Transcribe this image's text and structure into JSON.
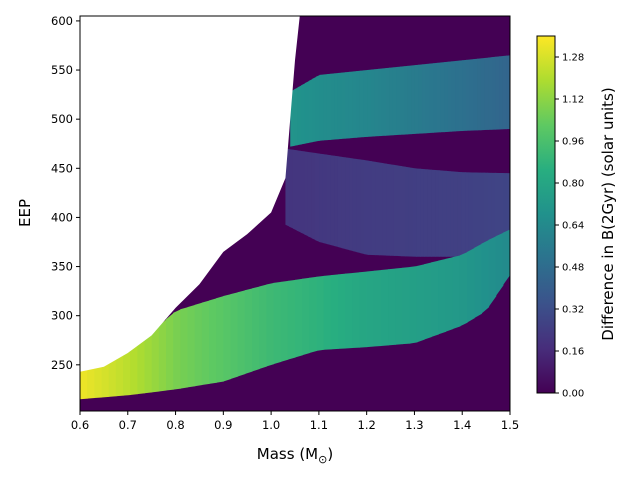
{
  "chart_data": {
    "type": "heatmap",
    "xlabel": "Mass (M",
    "xlabel_sub": "⊙",
    "xlabel_close": ")",
    "ylabel": "EEP",
    "colorbar_label": "Difference in B(2Gyr) (solar units)",
    "xlim": [
      0.6,
      1.5
    ],
    "ylim": [
      203,
      605
    ],
    "colorbar_range": [
      0.0,
      1.36
    ],
    "colormap": "viridis",
    "x_ticks": [
      "0.6",
      "0.7",
      "0.8",
      "0.9",
      "1.0",
      "1.1",
      "1.2",
      "1.3",
      "1.4",
      "1.5"
    ],
    "y_ticks": [
      "250",
      "300",
      "350",
      "400",
      "450",
      "500",
      "550",
      "600"
    ],
    "colorbar_ticks": [
      "0.00",
      "0.16",
      "0.32",
      "0.48",
      "0.64",
      "0.80",
      "0.96",
      "1.12",
      "1.28"
    ],
    "white_region_boundary": [
      [
        0.6,
        243
      ],
      [
        0.65,
        248
      ],
      [
        0.7,
        262
      ],
      [
        0.75,
        280
      ],
      [
        0.8,
        308
      ],
      [
        0.85,
        332
      ],
      [
        0.9,
        365
      ],
      [
        0.95,
        383
      ],
      [
        1.0,
        405
      ],
      [
        1.03,
        440
      ],
      [
        1.04,
        500
      ],
      [
        1.05,
        560
      ],
      [
        1.06,
        605
      ]
    ],
    "bands": [
      {
        "name": "main-sequence-band",
        "upper_edge": [
          [
            0.6,
            243
          ],
          [
            0.7,
            262
          ],
          [
            0.8,
            305
          ],
          [
            0.9,
            320
          ],
          [
            1.0,
            333
          ],
          [
            1.1,
            340
          ],
          [
            1.2,
            345
          ],
          [
            1.3,
            350
          ],
          [
            1.4,
            362
          ],
          [
            1.45,
            376
          ],
          [
            1.5,
            388
          ]
        ],
        "lower_edge": [
          [
            0.6,
            215
          ],
          [
            0.7,
            219
          ],
          [
            0.8,
            225
          ],
          [
            0.9,
            233
          ],
          [
            1.0,
            250
          ],
          [
            1.1,
            265
          ],
          [
            1.2,
            268
          ],
          [
            1.3,
            272
          ],
          [
            1.4,
            290
          ],
          [
            1.45,
            305
          ],
          [
            1.5,
            342
          ]
        ],
        "value_at_x": [
          [
            0.6,
            1.33
          ],
          [
            0.7,
            1.22
          ],
          [
            0.8,
            1.08
          ],
          [
            0.9,
            1.0
          ],
          [
            1.0,
            0.92
          ],
          [
            1.1,
            0.87
          ],
          [
            1.2,
            0.8
          ],
          [
            1.3,
            0.76
          ],
          [
            1.4,
            0.72
          ],
          [
            1.5,
            0.64
          ]
        ]
      },
      {
        "name": "upper-band",
        "upper_edge": [
          [
            1.04,
            528
          ],
          [
            1.1,
            545
          ],
          [
            1.2,
            550
          ],
          [
            1.3,
            555
          ],
          [
            1.4,
            560
          ],
          [
            1.5,
            565
          ]
        ],
        "lower_edge": [
          [
            1.04,
            472
          ],
          [
            1.1,
            478
          ],
          [
            1.2,
            482
          ],
          [
            1.3,
            485
          ],
          [
            1.4,
            488
          ],
          [
            1.5,
            490
          ]
        ],
        "value_at_x": [
          [
            1.04,
            0.7
          ],
          [
            1.1,
            0.66
          ],
          [
            1.2,
            0.62
          ],
          [
            1.3,
            0.56
          ],
          [
            1.4,
            0.5
          ],
          [
            1.5,
            0.44
          ]
        ]
      },
      {
        "name": "intermediate-region",
        "upper_edge": [
          [
            1.03,
            470
          ],
          [
            1.1,
            465
          ],
          [
            1.2,
            458
          ],
          [
            1.3,
            450
          ],
          [
            1.4,
            446
          ],
          [
            1.5,
            445
          ]
        ],
        "lower_edge": [
          [
            1.0,
            400
          ],
          [
            1.1,
            375
          ],
          [
            1.2,
            362
          ],
          [
            1.3,
            360
          ],
          [
            1.4,
            360
          ],
          [
            1.5,
            360
          ]
        ],
        "value_at_x": [
          [
            1.0,
            0.2
          ],
          [
            1.2,
            0.24
          ],
          [
            1.4,
            0.26
          ],
          [
            1.5,
            0.28
          ]
        ]
      }
    ],
    "background_value": 0.0,
    "grid": false
  }
}
